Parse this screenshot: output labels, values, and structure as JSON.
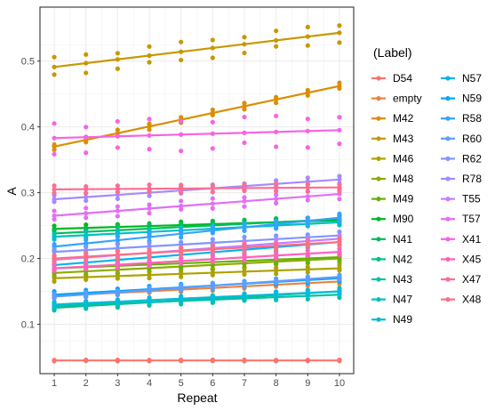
{
  "chart_data": {
    "type": "scatter",
    "xlabel": "Repeat",
    "ylabel": "A",
    "x_ticks": [
      1,
      2,
      3,
      4,
      5,
      6,
      7,
      8,
      9,
      10
    ],
    "y_ticks": [
      0.1,
      0.2,
      0.3,
      0.4,
      0.5
    ],
    "y_tick_labels": [
      "0.1",
      "0.2",
      "0.3",
      "0.4",
      "0.5"
    ],
    "xlim": [
      0.55,
      10.45
    ],
    "ylim": [
      0.025,
      0.582
    ],
    "grid": true,
    "legend_title": "(Label)",
    "legend_position": "right",
    "series": [
      {
        "name": "D54",
        "color": "#F8766D",
        "start": 0.045,
        "end": 0.045,
        "jitter": 0.001
      },
      {
        "name": "empty",
        "color": "#EC823C",
        "start": 0.143,
        "end": 0.165,
        "jitter": 0.004
      },
      {
        "name": "M42",
        "color": "#DB8E00",
        "start": 0.37,
        "end": 0.462,
        "jitter": 0.005
      },
      {
        "name": "M43",
        "color": "#C79800",
        "start": 0.491,
        "end": 0.543,
        "jitter": 0.015
      },
      {
        "name": "M46",
        "color": "#AEA200",
        "start": 0.17,
        "end": 0.185,
        "jitter": 0.005
      },
      {
        "name": "M48",
        "color": "#8FAA00",
        "start": 0.178,
        "end": 0.2,
        "jitter": 0.006
      },
      {
        "name": "M49",
        "color": "#64B200",
        "start": 0.185,
        "end": 0.202,
        "jitter": 0.006
      },
      {
        "name": "M90",
        "color": "#00B81F",
        "start": 0.245,
        "end": 0.258,
        "jitter": 0.005
      },
      {
        "name": "N41",
        "color": "#00BD5C",
        "start": 0.238,
        "end": 0.26,
        "jitter": 0.006
      },
      {
        "name": "N42",
        "color": "#00C08B",
        "start": 0.125,
        "end": 0.15,
        "jitter": 0.005
      },
      {
        "name": "N43",
        "color": "#00C1A7",
        "start": 0.128,
        "end": 0.145,
        "jitter": 0.005
      },
      {
        "name": "N47",
        "color": "#00BFC4",
        "start": 0.233,
        "end": 0.255,
        "jitter": 0.005
      },
      {
        "name": "N49",
        "color": "#00BBDB",
        "start": 0.13,
        "end": 0.15,
        "jitter": 0.004
      },
      {
        "name": "N57",
        "color": "#00B4EF",
        "start": 0.19,
        "end": 0.225,
        "jitter": 0.006
      },
      {
        "name": "N59",
        "color": "#00A6FF",
        "start": 0.145,
        "end": 0.17,
        "jitter": 0.005
      },
      {
        "name": "R58",
        "color": "#35A2FF",
        "start": 0.218,
        "end": 0.262,
        "jitter": 0.006
      },
      {
        "name": "R60",
        "color": "#5D9DFF",
        "start": 0.142,
        "end": 0.172,
        "jitter": 0.004
      },
      {
        "name": "R62",
        "color": "#7F96FF",
        "start": 0.21,
        "end": 0.235,
        "jitter": 0.006
      },
      {
        "name": "R78",
        "color": "#A58AFF",
        "start": 0.29,
        "end": 0.32,
        "jitter": 0.006
      },
      {
        "name": "T55",
        "color": "#C77CFF",
        "start": 0.198,
        "end": 0.23,
        "jitter": 0.006
      },
      {
        "name": "T57",
        "color": "#E36EF6",
        "start": 0.265,
        "end": 0.298,
        "jitter": 0.008
      },
      {
        "name": "X41",
        "color": "#F564E3",
        "start": 0.383,
        "end": 0.395,
        "jitter": 0.025
      },
      {
        "name": "X45",
        "color": "#FF62BC",
        "start": 0.185,
        "end": 0.21,
        "jitter": 0.005
      },
      {
        "name": "X47",
        "color": "#FF6C91",
        "start": 0.305,
        "end": 0.308,
        "jitter": 0.006
      },
      {
        "name": "X48",
        "color": "#FD6F86",
        "start": 0.2,
        "end": 0.225,
        "jitter": 0.006
      }
    ]
  }
}
